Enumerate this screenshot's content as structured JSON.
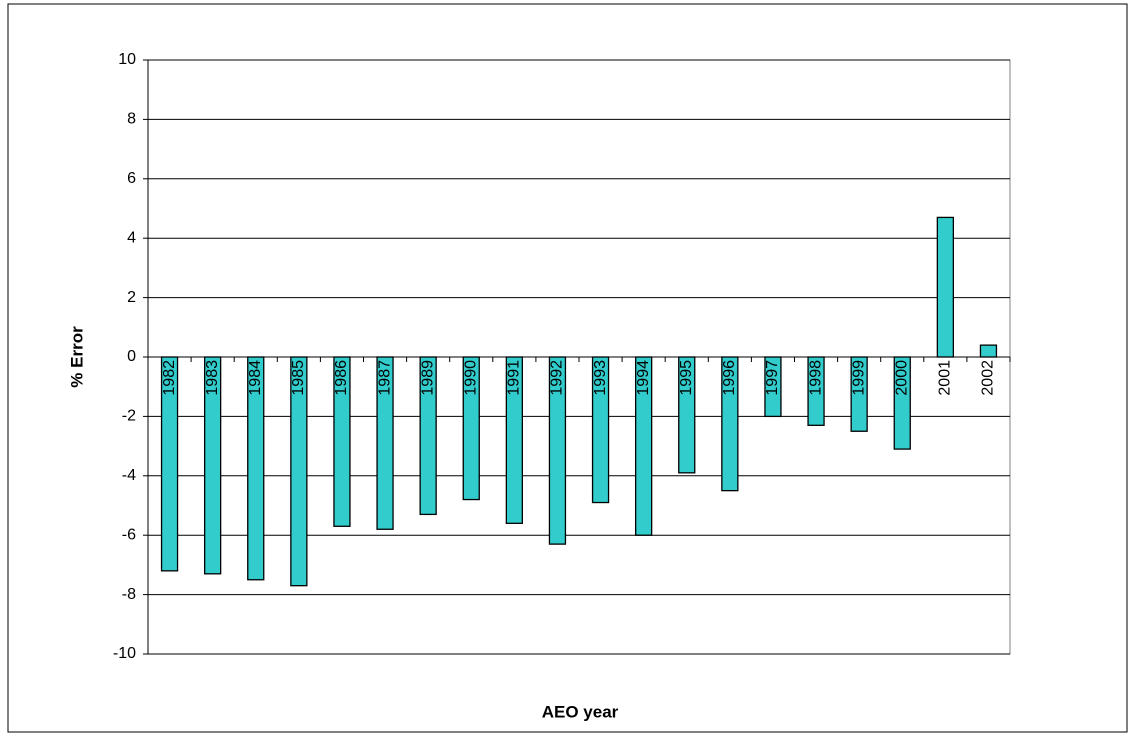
{
  "chart_data": {
    "type": "bar",
    "x_label": "AEO year",
    "y_label": "% Error",
    "categories": [
      "1982",
      "1983",
      "1984",
      "1985",
      "1986",
      "1987",
      "1989",
      "1990",
      "1991",
      "1992",
      "1993",
      "1994",
      "1995",
      "1996",
      "1997",
      "1998",
      "1999",
      "2000",
      "2001",
      "2002"
    ],
    "values": [
      -7.2,
      -7.3,
      -7.5,
      -7.7,
      -5.7,
      -5.8,
      -5.3,
      -4.8,
      -5.6,
      -6.3,
      -4.9,
      -6.0,
      -3.9,
      -4.5,
      -2.0,
      -2.3,
      -2.5,
      -3.1,
      4.7,
      0.4
    ],
    "color": "#33cccc",
    "ylim": [
      -10,
      10
    ],
    "yticks": [
      -10,
      -8,
      -6,
      -4,
      -2,
      0,
      2,
      4,
      6,
      8,
      10
    ],
    "grid": true
  }
}
